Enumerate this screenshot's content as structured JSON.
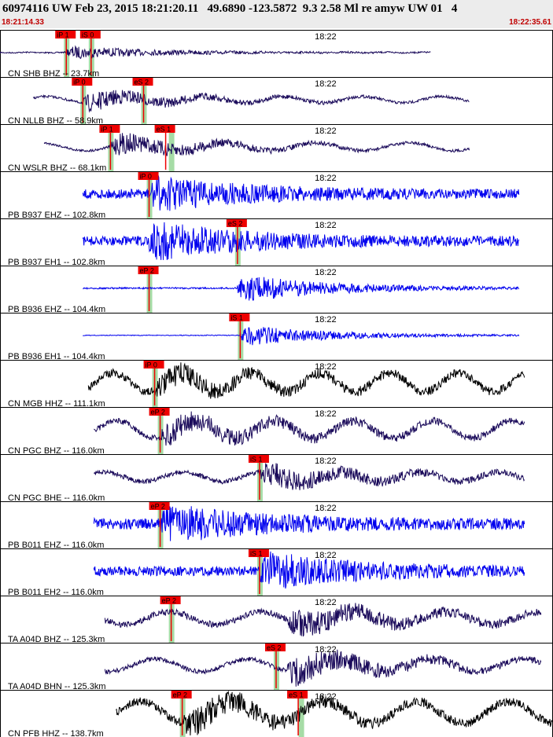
{
  "header": {
    "title": "60974116 UW Feb 23, 2015 18:21:20.11   49.6890 -123.5872  9.3 2.58 Ml re amyw UW 01   4",
    "start_time": "18:21:14.33",
    "end_time": "18:22:35.61"
  },
  "colors": {
    "vertical": "#1a0a5a",
    "horizontal": "#0000ee",
    "broadband": "#000000",
    "pick": "#ee0000",
    "highlight": "#a6dca6"
  },
  "chart_data": {
    "type": "line",
    "minute_tick_label": "18:22",
    "grid": false,
    "traces": [
      {
        "label": "CN SHB BHZ -- 23.7km",
        "color": "vertical",
        "x0": 0.0,
        "x1": 0.78,
        "onset": 0.12,
        "amp": 8,
        "noise": 0.8,
        "wave": 0.3,
        "freq": 14,
        "picks": [
          {
            "text": "iP 1",
            "x": 0.12,
            "h": 0.12
          },
          {
            "text": "iS 0",
            "x": 0.165,
            "h": 0.165
          }
        ]
      },
      {
        "label": "CN NLLB BHZ -- 58.9km",
        "color": "vertical",
        "x0": 0.06,
        "x1": 0.85,
        "onset": 0.15,
        "amp": 12,
        "noise": 1.5,
        "wave": 4,
        "freq": 7,
        "picks": [
          {
            "text": "iP 0",
            "x": 0.15,
            "h": 0.15
          },
          {
            "text": "eS 2",
            "x": 0.26,
            "h": 0.26
          }
        ]
      },
      {
        "label": "CN WSLR BHZ -- 68.1km",
        "color": "vertical",
        "x0": 0.08,
        "x1": 0.85,
        "onset": 0.2,
        "amp": 14,
        "noise": 1.5,
        "wave": 5,
        "freq": 6,
        "picks": [
          {
            "text": "iP 1",
            "x": 0.2,
            "h": 0.2
          },
          {
            "text": "eS 1",
            "x": 0.3,
            "h": 0.31
          }
        ]
      },
      {
        "label": "PB B937 EHZ -- 102.8km",
        "color": "horizontal",
        "x0": 0.15,
        "x1": 0.94,
        "onset": 0.27,
        "amp": 20,
        "noise": 6,
        "wave": 0,
        "freq": 8,
        "picks": [
          {
            "text": "iP 0",
            "x": 0.27,
            "h": 0.27
          }
        ]
      },
      {
        "label": "PB B937 EH1 -- 102.8km",
        "color": "horizontal",
        "x0": 0.15,
        "x1": 0.94,
        "onset": 0.27,
        "amp": 22,
        "noise": 6,
        "wave": 0,
        "freq": 8,
        "picks": [
          {
            "text": "eS 2",
            "x": 0.43,
            "h": 0.43
          }
        ]
      },
      {
        "label": "PB B936 EHZ -- 104.4km",
        "color": "horizontal",
        "x0": 0.15,
        "x1": 0.94,
        "onset": 0.43,
        "amp": 18,
        "noise": 1,
        "wave": 0,
        "freq": 8,
        "picks": [
          {
            "text": "eP 2",
            "x": 0.27,
            "h": 0.27
          }
        ]
      },
      {
        "label": "PB B936 EH1 -- 104.4km",
        "color": "horizontal",
        "x0": 0.15,
        "x1": 0.94,
        "onset": 0.435,
        "amp": 14,
        "noise": 0.5,
        "wave": 0,
        "freq": 8,
        "picks": [
          {
            "text": "iS 1",
            "x": 0.435,
            "h": 0.435
          }
        ]
      },
      {
        "label": "CN MGB HHZ -- 111.1km",
        "color": "broadband",
        "x0": 0.16,
        "x1": 0.95,
        "onset": 0.28,
        "amp": 12,
        "noise": 5,
        "wave": 12,
        "freq": 8,
        "picks": [
          {
            "text": "iP 0",
            "x": 0.28,
            "h": 0.28
          }
        ]
      },
      {
        "label": "CN PGC BHZ -- 116.0km",
        "color": "vertical",
        "x0": 0.17,
        "x1": 0.95,
        "onset": 0.29,
        "amp": 14,
        "noise": 4,
        "wave": 11,
        "freq": 7,
        "picks": [
          {
            "text": "eP 2",
            "x": 0.29,
            "h": 0.29
          }
        ]
      },
      {
        "label": "CN PGC BHE -- 116.0km",
        "color": "vertical",
        "x0": 0.17,
        "x1": 0.95,
        "onset": 0.47,
        "amp": 14,
        "noise": 3,
        "wave": 6,
        "freq": 7,
        "picks": [
          {
            "text": "iS 1",
            "x": 0.47,
            "h": 0.47
          }
        ]
      },
      {
        "label": "PB B011 EHZ -- 116.0km",
        "color": "horizontal",
        "x0": 0.17,
        "x1": 0.95,
        "onset": 0.29,
        "amp": 22,
        "noise": 7,
        "wave": 0,
        "freq": 8,
        "picks": [
          {
            "text": "eP 2",
            "x": 0.29,
            "h": 0.29
          }
        ]
      },
      {
        "label": "PB B011 EH2 -- 116.0km",
        "color": "horizontal",
        "x0": 0.17,
        "x1": 0.95,
        "onset": 0.47,
        "amp": 22,
        "noise": 6,
        "wave": 0,
        "freq": 8,
        "picks": [
          {
            "text": "iS 1",
            "x": 0.47,
            "h": 0.47
          }
        ]
      },
      {
        "label": "TA A04D BHZ -- 125.3km",
        "color": "vertical",
        "x0": 0.19,
        "x1": 0.98,
        "onset": 0.52,
        "amp": 16,
        "noise": 4,
        "wave": 8,
        "freq": 6,
        "picks": [
          {
            "text": "eP 2",
            "x": 0.31,
            "h": 0.31
          }
        ]
      },
      {
        "label": "TA A04D BHN -- 125.3km",
        "color": "vertical",
        "x0": 0.19,
        "x1": 0.98,
        "onset": 0.52,
        "amp": 18,
        "noise": 3,
        "wave": 8,
        "freq": 6,
        "picks": [
          {
            "text": "eS 2",
            "x": 0.5,
            "h": 0.5
          }
        ]
      },
      {
        "label": "CN PFB HHZ -- 138.7km",
        "color": "broadband",
        "x0": 0.21,
        "x1": 1.0,
        "onset": 0.33,
        "amp": 16,
        "noise": 5,
        "wave": 14,
        "freq": 6,
        "picks": [
          {
            "text": "eP 2",
            "x": 0.33,
            "h": 0.33
          },
          {
            "text": "eS 1",
            "x": 0.54,
            "h": 0.545
          }
        ]
      }
    ]
  }
}
